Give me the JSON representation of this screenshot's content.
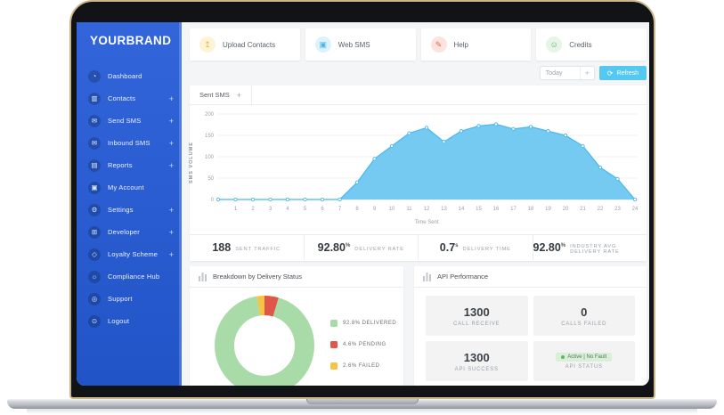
{
  "brand": "YOURBRAND",
  "colors": {
    "sidebar_blue": "#2b5dd1",
    "chart_blue": "#69c5f0",
    "chart_stroke": "#49b8ee",
    "refresh_blue": "#55c8f2",
    "delivered_green": "#a8dba8",
    "pending_red": "#e0574a",
    "failed_yellow": "#f6c445",
    "status_badge_green": "#daeeda"
  },
  "sidebar": {
    "items": [
      {
        "label": "Dashboard",
        "icon": "dashboard-icon",
        "glyph": "◔",
        "expandable": false
      },
      {
        "label": "Contacts",
        "icon": "contacts-icon",
        "glyph": "▥",
        "expandable": true
      },
      {
        "label": "Send SMS",
        "icon": "send-sms-icon",
        "glyph": "✉",
        "expandable": true
      },
      {
        "label": "Inbound SMS",
        "icon": "inbound-sms-icon",
        "glyph": "✉",
        "expandable": true
      },
      {
        "label": "Reports",
        "icon": "reports-icon",
        "glyph": "▤",
        "expandable": true
      },
      {
        "label": "My Account",
        "icon": "my-account-icon",
        "glyph": "▣",
        "expandable": false
      },
      {
        "label": "Settings",
        "icon": "settings-icon",
        "glyph": "⚙",
        "expandable": true
      },
      {
        "label": "Developer",
        "icon": "developer-icon",
        "glyph": "⊞",
        "expandable": true
      },
      {
        "label": "Loyalty Scheme",
        "icon": "loyalty-tag-icon",
        "glyph": "◇",
        "expandable": true
      },
      {
        "label": "Compliance Hub",
        "icon": "compliance-bulb-icon",
        "glyph": "☼",
        "expandable": false
      },
      {
        "label": "Support",
        "icon": "support-lifering-icon",
        "glyph": "◎",
        "expandable": false
      },
      {
        "label": "Logout",
        "icon": "logout-power-icon",
        "glyph": "⊙",
        "expandable": false
      }
    ]
  },
  "topbar": {
    "cards": [
      {
        "label": "Upload Contacts",
        "icon": "upload-icon",
        "glyph": "↥",
        "color": "#e8b435",
        "bg": "#fdf4d8"
      },
      {
        "label": "Web SMS",
        "icon": "web-sms-icon",
        "glyph": "▣",
        "color": "#4db9ea",
        "bg": "#def2fc"
      },
      {
        "label": "Help",
        "icon": "help-pen-icon",
        "glyph": "✎",
        "color": "#e66a50",
        "bg": "#fbe4dd"
      },
      {
        "label": "Credits",
        "icon": "credits-icon",
        "glyph": "☺",
        "color": "#56b45c",
        "bg": "#e7f5e8"
      }
    ]
  },
  "controls": {
    "period": "Today",
    "add_label": "+",
    "refresh_label": "Refresh",
    "refresh_icon": "⟳"
  },
  "chart_tab": {
    "label": "Sent SMS",
    "add_label": "+"
  },
  "chart_data": [
    {
      "type": "area",
      "title": "Sent SMS",
      "x": [
        1,
        2,
        3,
        4,
        5,
        6,
        7,
        8,
        9,
        10,
        11,
        12,
        13,
        14,
        15,
        16,
        17,
        18,
        19,
        20,
        21,
        22,
        23,
        24
      ],
      "values": [
        0,
        0,
        0,
        0,
        0,
        0,
        0,
        40,
        95,
        125,
        155,
        168,
        135,
        160,
        172,
        176,
        165,
        170,
        160,
        150,
        125,
        75,
        48,
        0
      ],
      "xlabel": "Time Sent",
      "ylabel": "SMS VOLUME",
      "ylim": [
        0,
        200
      ],
      "yticks": [
        0,
        50,
        100,
        150,
        200
      ],
      "grid": true,
      "color": "#69c5f0",
      "stroke": "#49b8ee"
    },
    {
      "type": "donut",
      "title": "Breakdown by Delivery Status",
      "slices": [
        {
          "label": "DELIVERED",
          "value": 92.8,
          "color": "#a8dba8"
        },
        {
          "label": "PENDING",
          "value": 4.6,
          "color": "#e0574a"
        },
        {
          "label": "FAILED",
          "value": 2.6,
          "color": "#f6c445"
        }
      ],
      "legend_position": "right"
    }
  ],
  "stats": [
    {
      "value": "188",
      "unit": "",
      "label": "SENT TRAFFIC"
    },
    {
      "value": "92.80",
      "unit": "%",
      "label": "DELIVERY RATE"
    },
    {
      "value": "0.7",
      "unit": "s",
      "label": "DELIVERY TIME"
    },
    {
      "value": "92.80",
      "unit": "%",
      "label": "INDUSTRY AVG DELIVERY RATE"
    }
  ],
  "breakdown": {
    "title": "Breakdown by Delivery Status"
  },
  "api": {
    "title": "API Performance",
    "cards": [
      {
        "value": "1300",
        "label": "CALL RECEIVE"
      },
      {
        "value": "0",
        "label": "CALLS FAILED"
      },
      {
        "value": "1300",
        "label": "API SUCCESS"
      },
      {
        "badge": "Active | No Fault",
        "label": "API STATUS"
      }
    ]
  }
}
